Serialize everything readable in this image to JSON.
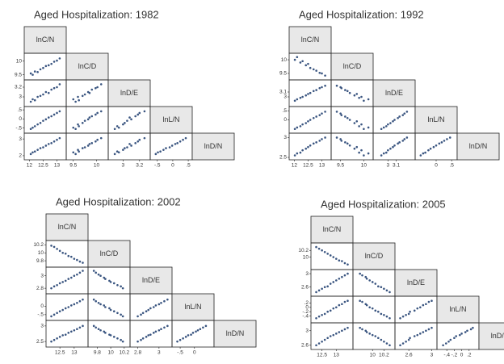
{
  "chart_data": [
    {
      "type": "scatter_matrix",
      "title": "Aged  Hospitalization: 1982",
      "color": "#3a5580",
      "variables": [
        {
          "name": "lnC/N",
          "values": [
            12.05,
            12.12,
            12.2,
            12.3,
            12.4,
            12.5,
            12.6,
            12.7,
            12.8,
            12.9,
            13.0,
            13.1
          ],
          "lim": [
            11.9,
            13.25
          ],
          "ticks": [
            12,
            12.5,
            13
          ]
        },
        {
          "name": "lnC/D",
          "values": [
            9.55,
            9.5,
            9.62,
            9.6,
            9.7,
            9.75,
            9.82,
            9.85,
            9.9,
            9.98,
            10.02,
            10.1
          ],
          "lim": [
            9.4,
            10.2
          ],
          "ticks": [
            9.5,
            10
          ]
        },
        {
          "name": "lnD/E",
          "values": [
            2.9,
            2.95,
            2.93,
            3.0,
            3.02,
            3.05,
            3.1,
            3.08,
            3.15,
            3.18,
            3.2,
            3.26
          ],
          "lim": [
            2.85,
            3.3
          ],
          "ticks": [
            3,
            3.2
          ]
        },
        {
          "name": "lnL/N",
          "values": [
            -0.55,
            -0.48,
            -0.4,
            -0.3,
            -0.22,
            -0.1,
            -0.02,
            0.08,
            0.15,
            0.24,
            0.33,
            0.42
          ],
          "lim": [
            -0.65,
            0.55
          ],
          "ticks": [
            {
              "value": -0.5,
              "label": "-.5"
            },
            0,
            {
              "value": 0.5,
              "label": ".5"
            }
          ]
        },
        {
          "name": "lnD/N",
          "values": [
            2.1,
            2.2,
            2.25,
            2.35,
            2.45,
            2.5,
            2.6,
            2.7,
            2.75,
            2.85,
            2.95,
            3.05
          ],
          "lim": [
            1.9,
            3.2
          ],
          "ticks": [
            2,
            3
          ]
        }
      ]
    },
    {
      "type": "scatter_matrix",
      "title": "Aged  Hospitalization: 1992",
      "color": "#3a5580",
      "variables": [
        {
          "name": "lnC/N",
          "values": [
            12.02,
            12.1,
            12.22,
            12.3,
            12.42,
            12.5,
            12.58,
            12.7,
            12.8,
            12.92,
            13.0,
            13.12
          ],
          "lim": [
            11.9,
            13.25
          ],
          "ticks": [
            12,
            12.5,
            13
          ]
        },
        {
          "name": "lnC/D",
          "values": [
            10.0,
            10.1,
            9.9,
            9.95,
            9.8,
            9.85,
            9.7,
            9.65,
            9.6,
            9.52,
            9.5,
            9.42
          ],
          "lim": [
            9.35,
            10.15
          ],
          "ticks": [
            9.5,
            10
          ]
        },
        {
          "name": "lnD/E",
          "values": [
            2.92,
            2.95,
            2.98,
            3.0,
            3.03,
            3.06,
            3.08,
            3.12,
            3.14,
            3.18,
            3.2,
            3.23
          ],
          "lim": [
            2.85,
            3.3
          ],
          "ticks": [
            3,
            3.1
          ]
        },
        {
          "name": "lnL/N",
          "values": [
            -0.5,
            -0.42,
            -0.35,
            -0.25,
            -0.18,
            -0.08,
            0,
            0.1,
            0.18,
            0.26,
            0.35,
            0.45
          ],
          "lim": [
            -0.6,
            0.6
          ],
          "ticks": [
            0,
            {
              "value": 0.5,
              "label": ".5"
            }
          ]
        },
        {
          "name": "lnD/N",
          "values": [
            2.55,
            2.6,
            2.62,
            2.68,
            2.72,
            2.76,
            2.8,
            2.85,
            2.88,
            2.92,
            2.96,
            3.0
          ],
          "lim": [
            2.5,
            3.05
          ],
          "ticks": [
            2.5,
            3
          ]
        }
      ]
    },
    {
      "type": "scatter_matrix",
      "title": "Aged  Hospitalization: 2002",
      "color": "#3a5580",
      "variables": [
        {
          "name": "lnC/N",
          "values": [
            12.2,
            12.3,
            12.4,
            12.5,
            12.6,
            12.7,
            12.8,
            12.9,
            13.0,
            13.1,
            13.2,
            13.3
          ],
          "lim": [
            12.1,
            13.4
          ],
          "ticks": [
            12.5,
            13
          ]
        },
        {
          "name": "lnC/D",
          "values": [
            10.18,
            10.15,
            10.1,
            10.05,
            10.0,
            9.98,
            9.92,
            9.9,
            9.85,
            9.82,
            9.78,
            9.75
          ],
          "lim": [
            9.7,
            10.25
          ],
          "ticks": [
            9.8,
            10,
            10.2
          ]
        },
        {
          "name": "lnD/E",
          "values": [
            2.8,
            2.83,
            2.85,
            2.88,
            2.9,
            2.92,
            2.95,
            2.97,
            3.0,
            3.02,
            3.05,
            3.08
          ],
          "lim": [
            2.75,
            3.1
          ],
          "ticks": [
            2.8,
            3
          ]
        },
        {
          "name": "lnL/N",
          "values": [
            -0.6,
            -0.5,
            -0.4,
            -0.3,
            -0.22,
            -0.12,
            -0.05,
            0.05,
            0.12,
            0.2,
            0.3,
            0.4
          ],
          "lim": [
            -0.7,
            0.6
          ],
          "ticks": [
            {
              "value": -0.5,
              "label": "-.5"
            },
            0
          ]
        },
        {
          "name": "lnD/N",
          "values": [
            2.5,
            2.55,
            2.6,
            2.65,
            2.7,
            2.72,
            2.78,
            2.82,
            2.86,
            2.9,
            2.95,
            3.0
          ],
          "lim": [
            2.4,
            3.1
          ],
          "ticks": [
            2.5,
            3
          ]
        }
      ]
    },
    {
      "type": "scatter_matrix",
      "title": "Aged  Hospitalization: 2005",
      "color": "#3a5580",
      "variables": [
        {
          "name": "lnC/N",
          "values": [
            12.3,
            12.4,
            12.5,
            12.6,
            12.7,
            12.8,
            12.9,
            13.0,
            13.1,
            13.2,
            13.3,
            13.4
          ],
          "lim": [
            12.2,
            13.5
          ],
          "ticks": [
            12.5,
            13
          ]
        },
        {
          "name": "lnC/D",
          "values": [
            10.3,
            10.25,
            10.2,
            10.15,
            10.1,
            10.05,
            10.0,
            9.95,
            9.9,
            9.88,
            9.82,
            9.78
          ],
          "lim": [
            9.7,
            10.35
          ],
          "ticks": [
            10,
            10.2
          ]
        },
        {
          "name": "lnD/E",
          "values": [
            2.45,
            2.5,
            2.55,
            2.6,
            2.62,
            2.7,
            2.75,
            2.8,
            2.85,
            2.9,
            2.95,
            3.0
          ],
          "lim": [
            2.4,
            3.05
          ],
          "ticks": [
            2.6,
            3
          ]
        },
        {
          "name": "lnL/N",
          "values": [
            -0.5,
            -0.42,
            -0.35,
            -0.3,
            -0.2,
            -0.15,
            -0.05,
            0,
            0.1,
            0.15,
            0.25,
            0.3
          ],
          "lim": [
            -0.6,
            0.4
          ],
          "ticks": [
            {
              "value": -0.4,
              "label": "-.4"
            },
            {
              "value": -0.2,
              "label": "-.2"
            },
            0,
            {
              "value": 0.2,
              "label": ".2"
            }
          ]
        },
        {
          "name": "lnD/N",
          "values": [
            2.6,
            2.65,
            2.7,
            2.75,
            2.8,
            2.85,
            2.88,
            2.92,
            2.96,
            3.0,
            3.04,
            3.08
          ],
          "lim": [
            2.55,
            3.15
          ],
          "ticks": [
            2.6,
            3
          ]
        }
      ]
    }
  ]
}
